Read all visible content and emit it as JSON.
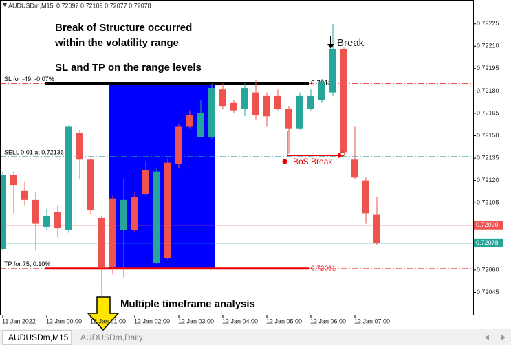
{
  "chart_data": {
    "type": "candlestick",
    "symbol": "AUDUSDm,M15",
    "ohlc_text": "0.72097 0.72109 0.72077 0.72078",
    "categories": [
      "11 Jan 2022",
      null,
      null,
      null,
      "12 Jan 00:00",
      null,
      null,
      null,
      "12 Jan 01:00",
      null,
      null,
      null,
      "12 Jan 02:00",
      null,
      null,
      null,
      "12 Jan 03:00",
      null,
      null,
      null,
      "12 Jan 04:00",
      null,
      null,
      null,
      "12 Jan 05:00",
      null,
      null,
      null,
      "12 Jan 06:00",
      null,
      null,
      null,
      "12 Jan 07:00",
      null,
      null
    ],
    "open": [
      0.72074,
      0.72124,
      0.72113,
      0.72107,
      0.72089,
      0.72099,
      0.72087,
      0.72152,
      0.72134,
      0.72095,
      0.72108,
      0.72087,
      0.72109,
      0.72127,
      0.72065,
      0.72132,
      0.72156,
      0.72164,
      0.72149,
      0.72149,
      0.72181,
      0.72172,
      0.72168,
      0.72179,
      0.72177,
      0.72177,
      0.72168,
      0.72155,
      0.72168,
      0.72174,
      0.72179,
      0.72208,
      0.72134,
      0.7212,
      0.72097
    ],
    "high": [
      0.72126,
      0.72126,
      0.72119,
      0.72112,
      0.72101,
      0.72103,
      0.72157,
      0.72154,
      0.72135,
      0.72096,
      0.7211,
      0.72121,
      0.72112,
      0.72133,
      0.72128,
      0.72135,
      0.72158,
      0.72167,
      0.72174,
      0.72185,
      0.72185,
      0.72174,
      0.72185,
      0.72187,
      0.72179,
      0.72181,
      0.7217,
      0.72179,
      0.72181,
      0.72188,
      0.72225,
      0.72209,
      0.72156,
      0.72122,
      0.72109
    ],
    "low": [
      0.72073,
      0.72098,
      0.72103,
      0.72073,
      0.72087,
      0.72082,
      0.72085,
      0.72121,
      0.72097,
      0.72043,
      0.72057,
      0.72055,
      0.72085,
      0.7211,
      0.72064,
      0.72067,
      0.72128,
      0.72155,
      0.72149,
      0.72148,
      0.72168,
      0.72165,
      0.72163,
      0.72161,
      0.72156,
      0.72167,
      0.72138,
      0.72154,
      0.72167,
      0.72172,
      0.72177,
      0.72138,
      0.72121,
      0.72091,
      0.72077
    ],
    "close": [
      0.72124,
      0.72117,
      0.72107,
      0.72091,
      0.72096,
      0.72088,
      0.72156,
      0.72134,
      0.721,
      0.72062,
      0.72062,
      0.72107,
      0.72087,
      0.72111,
      0.72126,
      0.72068,
      0.72131,
      0.72156,
      0.72165,
      0.72182,
      0.7217,
      0.72167,
      0.72182,
      0.72164,
      0.72163,
      0.72168,
      0.72155,
      0.72177,
      0.72177,
      0.72186,
      0.72208,
      0.72139,
      0.72122,
      0.72098,
      0.72078
    ],
    "up_color": "#26a69a",
    "down_color": "#ef5350",
    "ylim": [
      0.7203,
      0.72241
    ],
    "yticks": [
      0.72225,
      {
        "value": 0.7221,
        "label": "0.72210"
      },
      0.72195,
      {
        "value": 0.7218,
        "label": "0.72180"
      },
      0.72165,
      {
        "value": 0.7215,
        "label": "0.72150"
      },
      0.72135,
      {
        "value": 0.7212,
        "label": "0.72120"
      },
      0.72105,
      {
        "value": 0.7206,
        "label": "0.72060"
      },
      0.72045
    ],
    "range": {
      "high": 0.72185,
      "low": 0.72061,
      "color": "#0000ff"
    },
    "levels": [
      {
        "label": "SL for -49, -0.07%",
        "value": 0.72185,
        "color": "#ef5350"
      },
      {
        "label": "SELL 0.01 at 0.72136",
        "value": 0.72136,
        "color": "#26a69a"
      },
      {
        "label": "TP for 75, 0.10%",
        "value": 0.72061,
        "color": "#ef5350"
      }
    ],
    "price_lines": [
      {
        "value": 0.7209,
        "label": "0.72090",
        "color": "#ef5350"
      },
      {
        "value": 0.72078,
        "color": "#26a69a"
      }
    ],
    "annotations": [
      "Break of Structure occurred",
      "within the volatility range",
      "SL and TP on the range levels",
      "Multiple timeframe analysis",
      "Break",
      "BoS Break"
    ],
    "tabs": [
      "AUDUSDm,M15",
      "AUDUSDm,Daily"
    ]
  }
}
